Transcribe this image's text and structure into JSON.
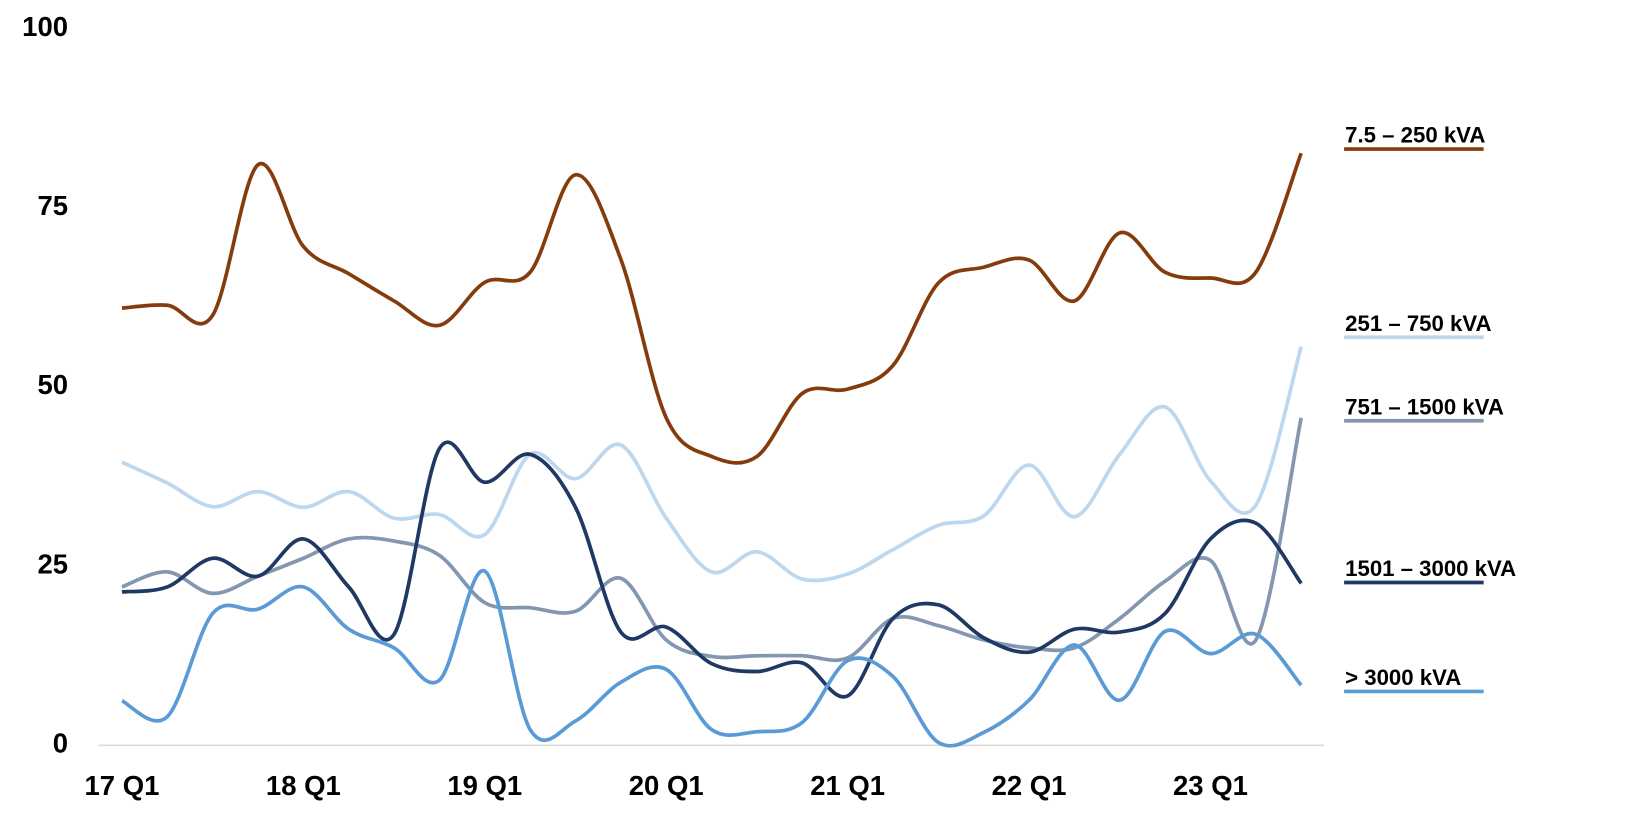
{
  "chart_data": {
    "type": "line",
    "categories": [
      "17 Q1",
      null,
      null,
      null,
      "18 Q1",
      null,
      null,
      null,
      "19 Q1",
      null,
      null,
      null,
      "20 Q1",
      null,
      null,
      null,
      "21 Q1",
      null,
      null,
      null,
      "22 Q1",
      null,
      null,
      null,
      "23 Q1",
      null,
      null
    ],
    "series": [
      {
        "name": "7.5 – 250 kVA",
        "color": "#843c0c",
        "values": [
          61,
          61.4,
          60,
          81,
          69.6,
          65.8,
          62,
          58.6,
          64.6,
          66,
          79.6,
          67.8,
          45.7,
          40.3,
          40.3,
          49.1,
          49.7,
          53,
          64.5,
          66.7,
          67.7,
          62,
          71.5,
          66,
          65.2,
          66,
          82.6
        ]
      },
      {
        "name": "251 – 750 kVA",
        "color": "#bdd7ee",
        "values": [
          39.5,
          36.6,
          33.3,
          35.4,
          33.2,
          35.4,
          31.7,
          32.2,
          29.4,
          40.6,
          37.2,
          41.9,
          31.7,
          24.2,
          27,
          23.2,
          23.9,
          27.3,
          30.7,
          32,
          39.1,
          31.9,
          40.6,
          47.2,
          36.9,
          33.5,
          55.6
        ]
      },
      {
        "name": "751 – 1500 kVA",
        "color": "#8497b0",
        "values": [
          22.1,
          24.2,
          21.2,
          23.6,
          26.1,
          28.8,
          28.5,
          26.5,
          19.9,
          19.2,
          18.7,
          23.3,
          14.7,
          12.4,
          12.5,
          12.5,
          12.2,
          17.7,
          16.7,
          14.7,
          13.6,
          13.6,
          17.7,
          22.9,
          25.8,
          14.7,
          45.7
        ]
      },
      {
        "name": "1501 – 3000 kVA",
        "color": "#1f3864",
        "values": [
          21.4,
          22.1,
          26.1,
          23.6,
          28.8,
          22.1,
          15.5,
          41.4,
          36.7,
          40.6,
          33.2,
          15.8,
          16.5,
          11.4,
          10.3,
          11.5,
          6.9,
          17.7,
          19.6,
          15,
          13,
          16.2,
          15.8,
          18.4,
          28.8,
          31,
          22.6
        ]
      },
      {
        "name": "> 3000 kVA",
        "color": "#5b9bd5",
        "values": [
          6.2,
          4,
          18.4,
          19,
          22.1,
          16.2,
          13.6,
          9.1,
          24.3,
          2.2,
          3.4,
          8.8,
          10.6,
          2.2,
          1.9,
          3.2,
          11.8,
          9.6,
          0.4,
          1.8,
          6.3,
          14,
          6.3,
          15.9,
          12.8,
          15.5,
          8.4
        ]
      }
    ],
    "ylim": [
      0,
      100
    ],
    "yticks": [
      0,
      25,
      50,
      75,
      100
    ],
    "grid": false,
    "legend": "right"
  }
}
